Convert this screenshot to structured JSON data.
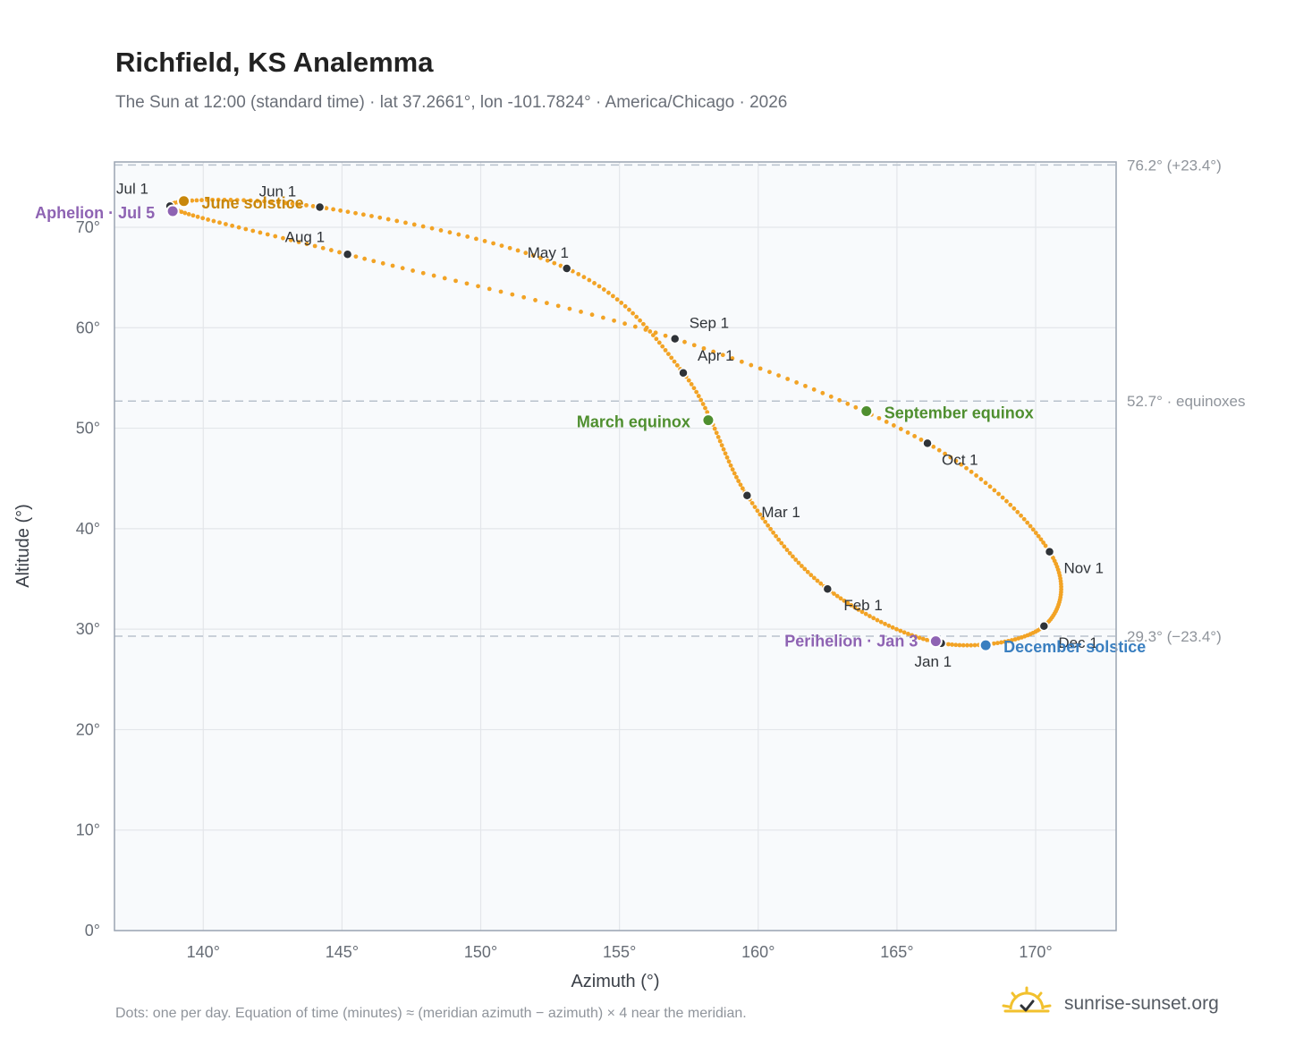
{
  "title": "Richfield, KS Analemma",
  "subtitle": "The Sun at 12:00 (standard time) · lat 37.2661°, lon -101.7824° · America/Chicago · 2026",
  "footer_note": "Dots: one per day. Equation of time (minutes) ≈ (meridian azimuth − azimuth) × 4 near the meridian.",
  "brand": {
    "text": "sunrise-sunset.org",
    "icon": "sun-logo-icon"
  },
  "colors": {
    "path": "#f2a325",
    "month_dot": "#2f3338",
    "equinox": "#4f8f2f",
    "june_solstice": "#c8870b",
    "december_solstice": "#3a7fc0",
    "aphelion_perihelion": "#8e63b3",
    "grid": "#e3e6ea",
    "plot_bg": "#f8fafc",
    "frame": "#9aa4b2"
  },
  "chart_data": {
    "type": "scatter",
    "xlabel": "Azimuth (°)",
    "ylabel": "Altitude (°)",
    "xlim": [
      136.8,
      172.9
    ],
    "ylim": [
      0,
      76.5
    ],
    "xticks": [
      140,
      145,
      150,
      155,
      160,
      165,
      170
    ],
    "yticks": [
      0,
      10,
      20,
      30,
      40,
      50,
      60,
      70
    ],
    "xtick_labels": [
      "140°",
      "145°",
      "150°",
      "155°",
      "160°",
      "165°",
      "170°"
    ],
    "ytick_labels": [
      "0°",
      "10°",
      "20°",
      "30°",
      "40°",
      "50°",
      "60°",
      "70°"
    ],
    "grid": true,
    "reference_lines": [
      {
        "y": 76.2,
        "label": "76.2° (+23.4°)"
      },
      {
        "y": 52.7,
        "label": "52.7° · equinoxes"
      },
      {
        "y": 29.3,
        "label": "29.3° (−23.4°)"
      }
    ],
    "month_markers": [
      {
        "label": "Jan 1",
        "x": 166.6,
        "y": 28.6
      },
      {
        "label": "Feb 1",
        "x": 162.5,
        "y": 34.0
      },
      {
        "label": "Mar 1",
        "x": 159.6,
        "y": 43.3
      },
      {
        "label": "Apr 1",
        "x": 157.3,
        "y": 55.5
      },
      {
        "label": "May 1",
        "x": 153.1,
        "y": 65.9
      },
      {
        "label": "Jun 1",
        "x": 144.2,
        "y": 72.0
      },
      {
        "label": "Jul 1",
        "x": 138.8,
        "y": 72.1
      },
      {
        "label": "Aug 1",
        "x": 145.2,
        "y": 67.3
      },
      {
        "label": "Sep 1",
        "x": 157.0,
        "y": 58.9
      },
      {
        "label": "Oct 1",
        "x": 166.1,
        "y": 48.5
      },
      {
        "label": "Nov 1",
        "x": 170.5,
        "y": 37.7
      },
      {
        "label": "Dec 1",
        "x": 170.3,
        "y": 30.3
      }
    ],
    "events": [
      {
        "label": "March equinox",
        "x": 158.2,
        "y": 50.8,
        "color_key": "equinox"
      },
      {
        "label": "June solstice",
        "x": 139.3,
        "y": 72.6,
        "color_key": "june_solstice"
      },
      {
        "label": "September equinox",
        "x": 163.9,
        "y": 51.7,
        "color_key": "equinox"
      },
      {
        "label": "December solstice",
        "x": 168.2,
        "y": 28.4,
        "color_key": "december_solstice"
      },
      {
        "label": "Aphelion · Jul 5",
        "x": 138.9,
        "y": 71.6,
        "color_key": "aphelion_perihelion"
      },
      {
        "label": "Perihelion · Jan 3",
        "x": 166.4,
        "y": 28.8,
        "color_key": "aphelion_perihelion"
      }
    ]
  }
}
